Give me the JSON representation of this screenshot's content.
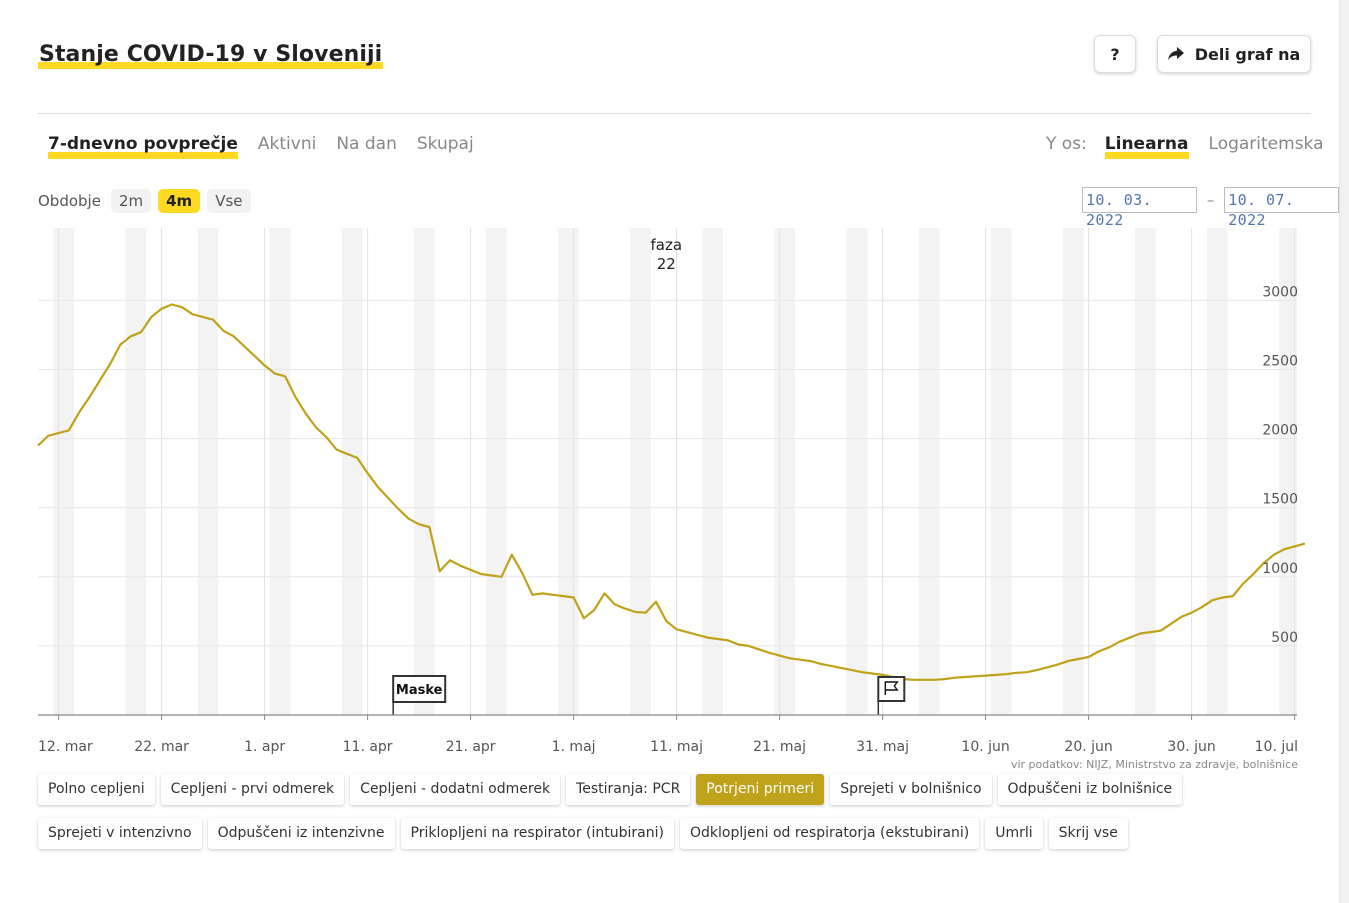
{
  "header": {
    "title": "Stanje COVID-19 v Sloveniji",
    "help_label": "?",
    "share_label": "Deli graf na"
  },
  "view_tabs": [
    "7-dnevno povprečje",
    "Aktivni",
    "Na dan",
    "Skupaj"
  ],
  "y_axis": {
    "label": "Y os:",
    "options": [
      "Linearna",
      "Logaritemska"
    ],
    "selected": "Linearna"
  },
  "period": {
    "label": "Obdobje",
    "options": [
      "2m",
      "4m",
      "Vse"
    ],
    "selected": "4m"
  },
  "date_range": {
    "from": "10. 03. 2022",
    "separator": "–",
    "to": "10. 07. 2022"
  },
  "colors": {
    "accent": "#ffd922",
    "series": "#bfa21a",
    "active_chip": "#bfa21a"
  },
  "chart_data": {
    "type": "line",
    "title": "Potrjeni primeri",
    "x_start": "2022-03-10",
    "x_end": "2022-07-10",
    "ylim": [
      0,
      3400
    ],
    "yticks": [
      500,
      1000,
      1500,
      2000,
      2500,
      3000
    ],
    "x_tick_days": [
      2,
      12,
      22,
      32,
      42,
      52,
      62,
      72,
      82,
      92,
      102,
      112,
      122
    ],
    "x_tick_labels": [
      "12. mar",
      "22. mar",
      "1. apr",
      "11. apr",
      "21. apr",
      "1. maj",
      "11. maj",
      "21. maj",
      "31. maj",
      "10. jun",
      "20. jun",
      "30. jun",
      "10. jul"
    ],
    "grid": true,
    "series": [
      {
        "name": "Potrjeni primeri",
        "values": [
          1950,
          2020,
          2040,
          2060,
          2190,
          2300,
          2420,
          2540,
          2680,
          2740,
          2770,
          2880,
          2940,
          2970,
          2950,
          2900,
          2880,
          2860,
          2780,
          2740,
          2670,
          2600,
          2530,
          2470,
          2450,
          2300,
          2180,
          2080,
          2010,
          1920,
          1890,
          1860,
          1750,
          1650,
          1570,
          1490,
          1420,
          1380,
          1360,
          1040,
          1120,
          1080,
          1050,
          1020,
          1010,
          1000,
          1160,
          1030,
          870,
          880,
          870,
          860,
          850,
          700,
          760,
          880,
          800,
          770,
          745,
          740,
          820,
          680,
          620,
          600,
          580,
          560,
          550,
          540,
          510,
          500,
          475,
          450,
          430,
          410,
          400,
          390,
          370,
          355,
          340,
          325,
          310,
          300,
          290,
          275,
          260,
          255,
          255,
          255,
          260,
          270,
          275,
          280,
          285,
          290,
          295,
          305,
          310,
          325,
          345,
          365,
          390,
          405,
          420,
          460,
          490,
          530,
          560,
          590,
          600,
          610,
          660,
          710,
          740,
          780,
          830,
          850,
          860,
          950,
          1020,
          1100,
          1160,
          1200,
          1220,
          1240
        ]
      }
    ],
    "annotations": [
      {
        "label": "faza",
        "value": "22",
        "day": 61
      },
      {
        "label": "Maske",
        "day": 34,
        "type": "flag"
      },
      {
        "label": "",
        "day": 81,
        "type": "flag",
        "icon": "flag-icon"
      }
    ],
    "source": "vir podatkov: NIJZ, Ministrstvo za zdravje, bolnišnice"
  },
  "series_toggles": {
    "row1": [
      "Polno cepljeni",
      "Cepljeni - prvi odmerek",
      "Cepljeni - dodatni odmerek",
      "Testiranja: PCR",
      "Potrjeni primeri",
      "Sprejeti v bolnišnico",
      "Odpuščeni iz bolnišnice"
    ],
    "row2": [
      "Sprejeti v intenzivno",
      "Odpuščeni iz intenzivne",
      "Priklopljeni na respirator (intubirani)",
      "Odklopljeni od respiratorja (ekstubirani)",
      "Umrli",
      "Skrij vse"
    ],
    "active": "Potrjeni primeri"
  }
}
